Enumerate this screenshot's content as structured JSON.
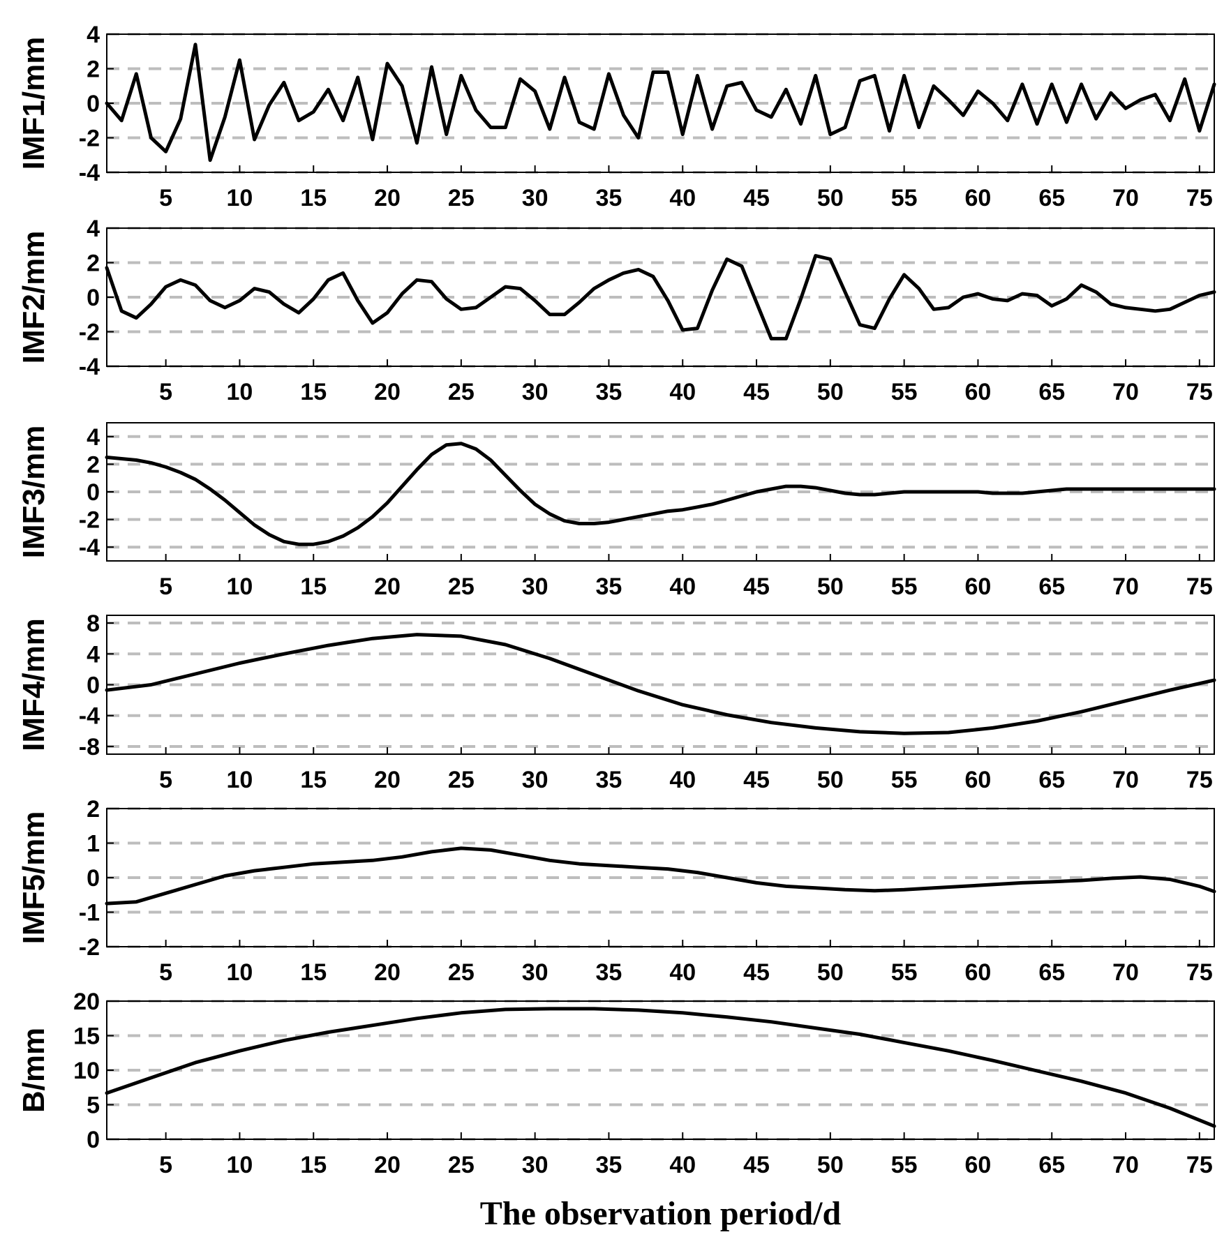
{
  "chart_data": [
    {
      "type": "line",
      "ylabel": "IMF1/mm",
      "ylim": [
        -4,
        4
      ],
      "yticks": [
        -4,
        -2,
        0,
        2,
        4
      ],
      "xlim": [
        1,
        76
      ],
      "xticks": [
        5,
        10,
        15,
        20,
        25,
        30,
        35,
        40,
        45,
        50,
        55,
        60,
        65,
        70,
        75
      ],
      "grid": "horizontal-dashed",
      "x": [
        1,
        2,
        3,
        4,
        5,
        6,
        7,
        8,
        9,
        10,
        11,
        12,
        13,
        14,
        15,
        16,
        17,
        18,
        19,
        20,
        21,
        22,
        23,
        24,
        25,
        26,
        27,
        28,
        29,
        30,
        31,
        32,
        33,
        34,
        35,
        36,
        37,
        38,
        39,
        40,
        41,
        42,
        43,
        44,
        45,
        46,
        47,
        48,
        49,
        50,
        51,
        52,
        53,
        54,
        55,
        56,
        57,
        58,
        59,
        60,
        61,
        62,
        63,
        64,
        65,
        66,
        67,
        68,
        69,
        70,
        71,
        72,
        73,
        74,
        75,
        76
      ],
      "values": [
        0.0,
        -1.0,
        1.7,
        -2.0,
        -2.8,
        -0.9,
        3.4,
        -3.3,
        -0.8,
        2.5,
        -2.1,
        -0.1,
        1.2,
        -1.0,
        -0.5,
        0.8,
        -1.0,
        1.5,
        -2.1,
        2.3,
        1.0,
        -2.3,
        2.1,
        -1.8,
        1.6,
        -0.4,
        -1.4,
        -1.4,
        1.4,
        0.7,
        -1.5,
        1.5,
        -1.1,
        -1.5,
        1.7,
        -0.7,
        -2.0,
        1.8,
        1.8,
        -1.8,
        1.6,
        -1.5,
        1.0,
        1.2,
        -0.4,
        -0.8,
        0.8,
        -1.2,
        1.6,
        -1.8,
        -1.4,
        1.3,
        1.6,
        -1.6,
        1.6,
        -1.4,
        1.0,
        0.2,
        -0.7,
        0.7,
        0.0,
        -1.0,
        1.1,
        -1.2,
        1.1,
        -1.1,
        1.1,
        -0.9,
        0.6,
        -0.3,
        0.2,
        0.5,
        -1.0,
        1.4,
        -1.6,
        1.1
      ]
    },
    {
      "type": "line",
      "ylabel": "IMF2/mm",
      "ylim": [
        -4,
        4
      ],
      "yticks": [
        -4,
        -2,
        0,
        2,
        4
      ],
      "xlim": [
        1,
        76
      ],
      "xticks": [
        5,
        10,
        15,
        20,
        25,
        30,
        35,
        40,
        45,
        50,
        55,
        60,
        65,
        70,
        75
      ],
      "grid": "horizontal-dashed",
      "x": [
        1,
        2,
        3,
        4,
        5,
        6,
        7,
        8,
        9,
        10,
        11,
        12,
        13,
        14,
        15,
        16,
        17,
        18,
        19,
        20,
        21,
        22,
        23,
        24,
        25,
        26,
        27,
        28,
        29,
        30,
        31,
        32,
        33,
        34,
        35,
        36,
        37,
        38,
        39,
        40,
        41,
        42,
        43,
        44,
        45,
        46,
        47,
        48,
        49,
        50,
        51,
        52,
        53,
        54,
        55,
        56,
        57,
        58,
        59,
        60,
        61,
        62,
        63,
        64,
        65,
        66,
        67,
        68,
        69,
        70,
        71,
        72,
        73,
        74,
        75,
        76
      ],
      "values": [
        1.7,
        -0.8,
        -1.2,
        -0.4,
        0.6,
        1.0,
        0.7,
        -0.2,
        -0.6,
        -0.2,
        0.5,
        0.3,
        -0.4,
        -0.9,
        -0.1,
        1.0,
        1.4,
        -0.2,
        -1.5,
        -0.9,
        0.2,
        1.0,
        0.9,
        -0.1,
        -0.7,
        -0.6,
        0.0,
        0.6,
        0.5,
        -0.2,
        -1.0,
        -1.0,
        -0.3,
        0.5,
        1.0,
        1.4,
        1.6,
        1.2,
        -0.2,
        -1.9,
        -1.8,
        0.4,
        2.2,
        1.8,
        -0.3,
        -2.4,
        -2.4,
        -0.1,
        2.4,
        2.2,
        0.3,
        -1.6,
        -1.8,
        -0.1,
        1.3,
        0.5,
        -0.7,
        -0.6,
        0.0,
        0.2,
        -0.1,
        -0.2,
        0.2,
        0.1,
        -0.5,
        -0.1,
        0.7,
        0.3,
        -0.4,
        -0.6,
        -0.7,
        -0.8,
        -0.7,
        -0.3,
        0.1,
        0.3
      ]
    },
    {
      "type": "line",
      "ylabel": "IMF3/mm",
      "ylim": [
        -5,
        5
      ],
      "yticks": [
        -4,
        -2,
        0,
        2,
        4
      ],
      "xlim": [
        1,
        76
      ],
      "xticks": [
        5,
        10,
        15,
        20,
        25,
        30,
        35,
        40,
        45,
        50,
        55,
        60,
        65,
        70,
        75
      ],
      "grid": "horizontal-dashed",
      "x": [
        1,
        2,
        3,
        4,
        5,
        6,
        7,
        8,
        9,
        10,
        11,
        12,
        13,
        14,
        15,
        16,
        17,
        18,
        19,
        20,
        21,
        22,
        23,
        24,
        25,
        26,
        27,
        28,
        29,
        30,
        31,
        32,
        33,
        34,
        35,
        36,
        37,
        38,
        39,
        40,
        41,
        42,
        43,
        44,
        45,
        46,
        47,
        48,
        49,
        50,
        51,
        52,
        53,
        54,
        55,
        56,
        57,
        58,
        59,
        60,
        61,
        62,
        63,
        64,
        65,
        66,
        67,
        68,
        69,
        70,
        71,
        72,
        73,
        74,
        75,
        76
      ],
      "values": [
        2.5,
        2.4,
        2.3,
        2.1,
        1.8,
        1.4,
        0.9,
        0.2,
        -0.6,
        -1.5,
        -2.4,
        -3.1,
        -3.6,
        -3.8,
        -3.8,
        -3.6,
        -3.2,
        -2.6,
        -1.8,
        -0.8,
        0.4,
        1.6,
        2.7,
        3.4,
        3.5,
        3.1,
        2.3,
        1.2,
        0.1,
        -0.9,
        -1.6,
        -2.1,
        -2.3,
        -2.3,
        -2.2,
        -2.0,
        -1.8,
        -1.6,
        -1.4,
        -1.3,
        -1.1,
        -0.9,
        -0.6,
        -0.3,
        0.0,
        0.2,
        0.4,
        0.4,
        0.3,
        0.1,
        -0.1,
        -0.2,
        -0.2,
        -0.1,
        0.0,
        0.0,
        0.0,
        0.0,
        0.0,
        0.0,
        -0.1,
        -0.1,
        -0.1,
        0.0,
        0.1,
        0.2,
        0.2,
        0.2,
        0.2,
        0.2,
        0.2,
        0.2,
        0.2,
        0.2,
        0.2,
        0.2
      ]
    },
    {
      "type": "line",
      "ylabel": "IMF4/mm",
      "ylim": [
        -9,
        9
      ],
      "yticks": [
        -8,
        -4,
        0,
        4,
        8
      ],
      "xlim": [
        1,
        76
      ],
      "xticks": [
        5,
        10,
        15,
        20,
        25,
        30,
        35,
        40,
        45,
        50,
        55,
        60,
        65,
        70,
        75
      ],
      "grid": "horizontal-dashed",
      "x": [
        1,
        4,
        7,
        10,
        13,
        16,
        19,
        22,
        25,
        28,
        31,
        34,
        37,
        40,
        43,
        46,
        49,
        52,
        55,
        58,
        61,
        64,
        67,
        70,
        73,
        76
      ],
      "values": [
        -0.7,
        0.0,
        1.4,
        2.8,
        4.0,
        5.1,
        6.0,
        6.5,
        6.3,
        5.2,
        3.4,
        1.3,
        -0.8,
        -2.6,
        -3.9,
        -4.9,
        -5.6,
        -6.1,
        -6.3,
        -6.2,
        -5.6,
        -4.7,
        -3.5,
        -2.1,
        -0.7,
        0.6
      ]
    },
    {
      "type": "line",
      "ylabel": "IMF5/mm",
      "ylim": [
        -2,
        2
      ],
      "yticks": [
        -2,
        -1,
        0,
        1,
        2
      ],
      "xlim": [
        1,
        76
      ],
      "xticks": [
        5,
        10,
        15,
        20,
        25,
        30,
        35,
        40,
        45,
        50,
        55,
        60,
        65,
        70,
        75
      ],
      "grid": "horizontal-dashed",
      "x": [
        1,
        3,
        5,
        7,
        9,
        11,
        13,
        15,
        17,
        19,
        21,
        23,
        25,
        27,
        29,
        31,
        33,
        35,
        37,
        39,
        41,
        43,
        45,
        47,
        49,
        51,
        53,
        55,
        57,
        59,
        61,
        63,
        65,
        67,
        69,
        71,
        73,
        75,
        76
      ],
      "values": [
        -0.75,
        -0.7,
        -0.45,
        -0.2,
        0.05,
        0.2,
        0.3,
        0.4,
        0.45,
        0.5,
        0.6,
        0.75,
        0.85,
        0.8,
        0.65,
        0.5,
        0.4,
        0.35,
        0.3,
        0.25,
        0.15,
        0.0,
        -0.15,
        -0.25,
        -0.3,
        -0.35,
        -0.38,
        -0.35,
        -0.3,
        -0.25,
        -0.2,
        -0.15,
        -0.12,
        -0.08,
        -0.02,
        0.02,
        -0.05,
        -0.25,
        -0.4
      ]
    },
    {
      "type": "line",
      "ylabel": "B/mm",
      "ylim": [
        0,
        20
      ],
      "yticks": [
        0,
        5,
        10,
        15,
        20
      ],
      "xlim": [
        1,
        76
      ],
      "xticks": [
        5,
        10,
        15,
        20,
        25,
        30,
        35,
        40,
        45,
        50,
        55,
        60,
        65,
        70,
        75
      ],
      "xlabel": "The observation period/d",
      "grid": "horizontal-dashed",
      "x": [
        1,
        4,
        7,
        10,
        13,
        16,
        19,
        22,
        25,
        28,
        31,
        34,
        37,
        40,
        43,
        46,
        49,
        52,
        55,
        58,
        61,
        64,
        67,
        70,
        73,
        76
      ],
      "values": [
        6.7,
        8.9,
        11.1,
        12.8,
        14.3,
        15.5,
        16.5,
        17.5,
        18.3,
        18.8,
        18.9,
        18.9,
        18.7,
        18.3,
        17.7,
        17.0,
        16.1,
        15.2,
        14.0,
        12.8,
        11.4,
        9.9,
        8.4,
        6.7,
        4.5,
        1.9
      ]
    }
  ]
}
